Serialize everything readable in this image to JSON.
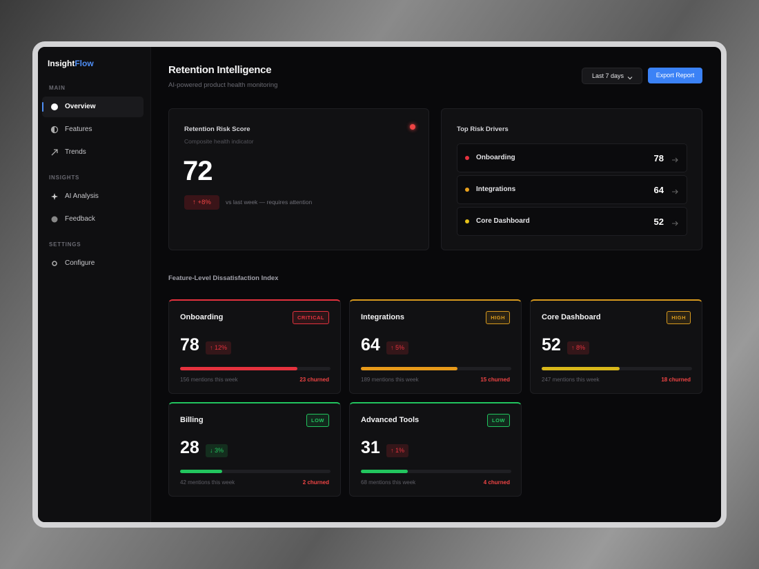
{
  "sidebar": {
    "brand": {
      "primary": "Insight",
      "accent": "Flow"
    },
    "sections": [
      {
        "label": "MAIN",
        "items": [
          "Overview",
          "Features",
          "Trends"
        ]
      },
      {
        "label": "INSIGHTS",
        "items": [
          "AI Analysis",
          "Feedback"
        ]
      },
      {
        "label": "SETTINGS",
        "items": [
          "Configure"
        ]
      }
    ]
  },
  "header": {
    "title": "Retention Intelligence",
    "subtitle": "AI-powered product health monitoring",
    "date_range": "Last 7 days",
    "export_button": "Export Report"
  },
  "risk_score": {
    "title": "Retention Risk Score",
    "subtitle": "Composite health indicator",
    "value": 72,
    "change": "↑ +8%",
    "comparison": "vs last week — requires attention"
  },
  "risk_drivers": {
    "title": "Top Risk Drivers",
    "items": [
      {
        "name": "Onboarding",
        "score": 78,
        "color": "#e5323e"
      },
      {
        "name": "Integrations",
        "score": 64,
        "color": "#eaa11c"
      },
      {
        "name": "Core Dashboard",
        "score": 52,
        "color": "#e6c21a"
      }
    ]
  },
  "feature_index": {
    "title": "Feature-Level Dissatisfaction Index",
    "cards": [
      {
        "name": "Onboarding",
        "level": "CRITICAL",
        "color": "#e5323e",
        "score": 78,
        "change": "↑ 12%",
        "change_color": "#e5323e",
        "bar_color": "#e5323e",
        "mentions": "156 mentions this week",
        "churned": "23 churned"
      },
      {
        "name": "Integrations",
        "level": "HIGH",
        "color": "#d99a1e",
        "score": 64,
        "change": "↑ 5%",
        "change_color": "#e5323e",
        "bar_color": "#e89a1a",
        "mentions": "189 mentions this week",
        "churned": "15 churned"
      },
      {
        "name": "Core Dashboard",
        "level": "HIGH",
        "color": "#d99a1e",
        "score": 52,
        "change": "↑ 8%",
        "change_color": "#e5323e",
        "bar_color": "#d9b81a",
        "mentions": "247 mentions this week",
        "churned": "18 churned"
      },
      {
        "name": "Billing",
        "level": "LOW",
        "color": "#22c55e",
        "score": 28,
        "change": "↓ 3%",
        "change_color": "#22c55e",
        "bar_color": "#22c55e",
        "mentions": "42 mentions this week",
        "churned": "2 churned"
      },
      {
        "name": "Advanced Tools",
        "level": "LOW",
        "color": "#22c55e",
        "score": 31,
        "change": "↑ 1%",
        "change_color": "#e5323e",
        "bar_color": "#22c55e",
        "mentions": "68 mentions this week",
        "churned": "4 churned"
      }
    ]
  }
}
